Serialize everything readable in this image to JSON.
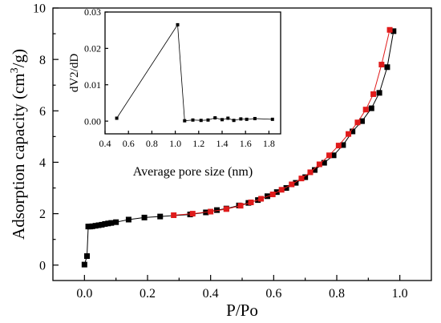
{
  "chart_data": [
    {
      "id": "main",
      "type": "line",
      "xlabel": "P/Po",
      "ylabel_main": "Adsorption capacity (cm",
      "ylabel_sup": "3",
      "ylabel_tail": "/g)",
      "xlim": [
        -0.1,
        1.1
      ],
      "ylim": [
        -0.6,
        10
      ],
      "xticks": [
        0.0,
        0.2,
        0.4,
        0.6,
        0.8,
        1.0
      ],
      "xtick_labels": [
        "0.0",
        "0.2",
        "0.4",
        "0.6",
        "0.8",
        "1.0"
      ],
      "yticks": [
        0,
        2,
        4,
        6,
        8,
        10
      ],
      "ytick_labels": [
        "0",
        "2",
        "4",
        "6",
        "8",
        "10"
      ],
      "grid": false,
      "series": [
        {
          "color": "#000000",
          "marker": "square",
          "x": [
            0.0,
            0.008,
            0.012,
            0.018,
            0.025,
            0.035,
            0.045,
            0.055,
            0.065,
            0.075,
            0.085,
            0.1,
            0.14,
            0.19,
            0.24,
            0.335,
            0.385,
            0.42,
            0.45,
            0.49,
            0.52,
            0.55,
            0.58,
            0.61,
            0.64,
            0.67,
            0.7,
            0.73,
            0.76,
            0.79,
            0.82,
            0.85,
            0.88,
            0.91,
            0.935,
            0.96,
            0.98
          ],
          "y": [
            0.02,
            0.35,
            1.5,
            1.5,
            1.51,
            1.53,
            1.55,
            1.57,
            1.6,
            1.62,
            1.64,
            1.67,
            1.77,
            1.85,
            1.89,
            1.97,
            2.05,
            2.14,
            2.2,
            2.32,
            2.42,
            2.53,
            2.68,
            2.84,
            3.0,
            3.2,
            3.42,
            3.7,
            3.98,
            4.27,
            4.67,
            5.2,
            5.6,
            6.1,
            6.7,
            7.7,
            9.1
          ]
        },
        {
          "color": "#e01b1b",
          "marker": "square",
          "x": [
            0.283,
            0.343,
            0.4,
            0.45,
            0.495,
            0.528,
            0.56,
            0.597,
            0.625,
            0.657,
            0.688,
            0.716,
            0.745,
            0.776,
            0.806,
            0.837,
            0.866,
            0.892,
            0.916,
            0.942,
            0.968
          ],
          "y": [
            1.94,
            2.0,
            2.08,
            2.18,
            2.31,
            2.44,
            2.58,
            2.75,
            2.93,
            3.14,
            3.37,
            3.61,
            3.92,
            4.27,
            4.65,
            5.1,
            5.55,
            6.05,
            6.65,
            7.8,
            9.15
          ]
        }
      ]
    },
    {
      "id": "inset",
      "type": "line",
      "xlabel": "Average pore size (nm)",
      "ylabel": "dV2/dD",
      "xlim": [
        0.4,
        1.9
      ],
      "ylim": [
        -0.0035,
        0.03
      ],
      "xticks": [
        0.4,
        0.6,
        0.8,
        1.0,
        1.2,
        1.4,
        1.6,
        1.8
      ],
      "xtick_labels": [
        "0.4",
        "0.6",
        "0.8",
        "1.0",
        "1.2",
        "1.4",
        "1.6",
        "1.8"
      ],
      "yticks": [
        0.0,
        0.01,
        0.02,
        0.03
      ],
      "ytick_labels": [
        "0.00",
        "0.01",
        "0.02",
        "0.03"
      ],
      "grid": false,
      "series": [
        {
          "color": "#000000",
          "marker": "square",
          "x": [
            0.5,
            1.02,
            1.08,
            1.15,
            1.22,
            1.28,
            1.34,
            1.4,
            1.45,
            1.5,
            1.56,
            1.61,
            1.68,
            1.83
          ],
          "y": [
            0.0008,
            0.0265,
            0.0001,
            0.0003,
            0.0002,
            0.0003,
            0.0009,
            0.0004,
            0.0008,
            0.0002,
            0.0006,
            0.0005,
            0.0007,
            0.0005
          ]
        }
      ]
    }
  ]
}
